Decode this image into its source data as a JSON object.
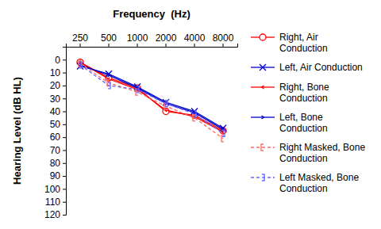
{
  "chart_data": {
    "type": "line",
    "title": "Frequency  (Hz)",
    "y_label": "Hearing Level (dB HL)",
    "categories": [
      "250",
      "500",
      "1000",
      "2000",
      "4000",
      "8000"
    ],
    "ylim": [
      -10,
      120
    ],
    "yticks": [
      0,
      10,
      20,
      30,
      40,
      50,
      60,
      70,
      80,
      90,
      100,
      110,
      120
    ],
    "grid": false,
    "legend": "right",
    "series": [
      {
        "name": "Right, Air Conduction",
        "color": "#ff0000",
        "marker": "circle",
        "line_style": "solid",
        "values": [
          2,
          14,
          22,
          40,
          43,
          55
        ]
      },
      {
        "name": "Left, Air Conduction",
        "color": "#0000cc",
        "marker": "x",
        "line_style": "solid",
        "values": [
          5,
          11,
          21,
          33,
          40,
          53
        ]
      },
      {
        "name": "Right, Bone Conduction",
        "color": "#ff0000",
        "marker": "angle-left",
        "line_style": "solid",
        "values": [
          2,
          15,
          23,
          39,
          44,
          56
        ]
      },
      {
        "name": "Left, Bone Conduction",
        "color": "#0000cc",
        "marker": "angle-right",
        "line_style": "solid",
        "values": [
          4,
          12,
          22,
          34,
          41,
          54
        ]
      },
      {
        "name": "Right Masked, Bone Conduction",
        "color": "#ff6666",
        "marker": "bracket-left",
        "line_style": "dashed",
        "values": [
          3,
          18,
          25,
          36,
          45,
          61
        ]
      },
      {
        "name": "Left Masked, Bone Conduction",
        "color": "#6666ff",
        "marker": "bracket-right",
        "line_style": "dashed",
        "values": [
          4,
          20,
          23,
          34,
          42,
          57
        ]
      }
    ]
  }
}
